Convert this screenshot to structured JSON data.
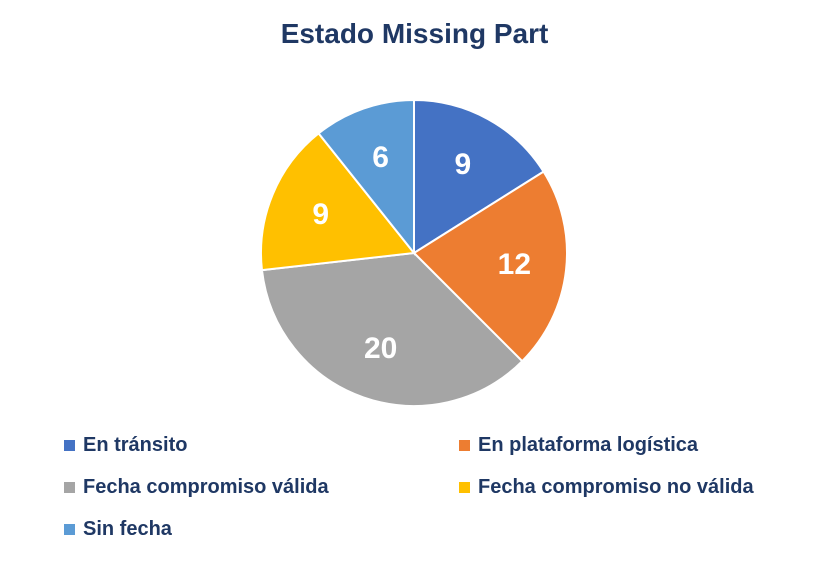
{
  "chart_data": {
    "type": "pie",
    "title": "Estado Missing Part",
    "categories": [
      "En tránsito",
      "En plataforma logística",
      "Fecha compromiso válida",
      "Fecha compromiso no válida",
      "Sin fecha"
    ],
    "values": [
      9,
      12,
      20,
      9,
      6
    ],
    "colors": [
      "#4472c4",
      "#ed7d31",
      "#a5a5a5",
      "#ffc000",
      "#5b9bd5"
    ],
    "data_labels": [
      "9",
      "12",
      "20",
      "9",
      "6"
    ],
    "legend_position": "bottom",
    "start_angle_deg": 0,
    "direction": "clockwise"
  }
}
